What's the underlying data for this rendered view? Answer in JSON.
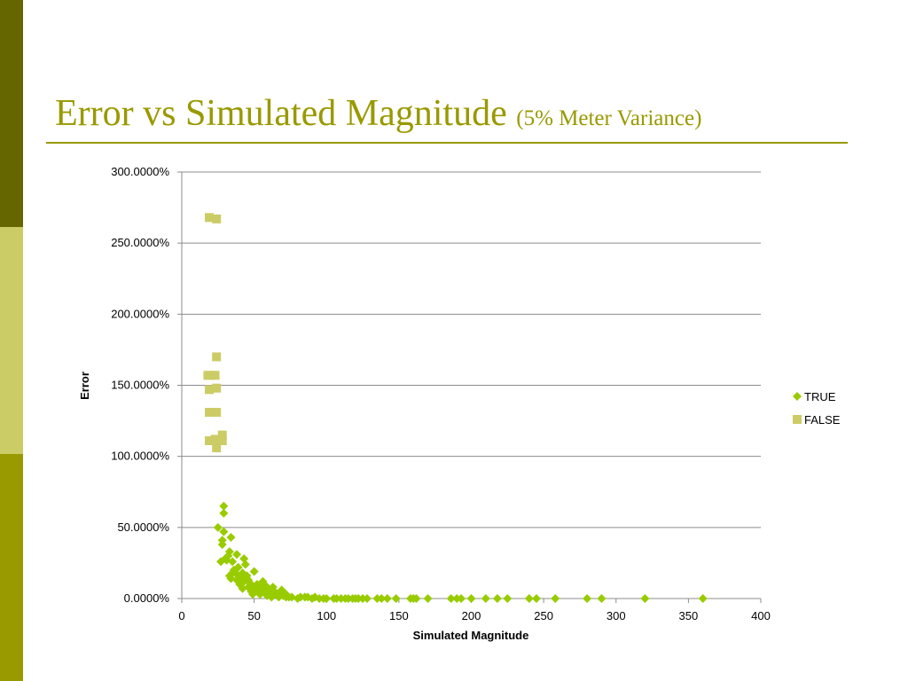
{
  "slide": {
    "title": "Error vs Simulated Magnitude",
    "subtitle": "(5% Meter Variance)",
    "colors": {
      "band_dark": "#666600",
      "band_light": "#cccc66",
      "band_mid": "#999900",
      "title": "#999900"
    }
  },
  "chart_data": {
    "type": "scatter",
    "title": "",
    "xlabel": "Simulated Magnitude",
    "ylabel": "Error",
    "xlim": [
      0,
      400
    ],
    "ylim": [
      0,
      300
    ],
    "x_ticks": [
      0,
      50,
      100,
      150,
      200,
      250,
      300,
      350,
      400
    ],
    "x_tick_labels": [
      "0",
      "50",
      "100",
      "150",
      "200",
      "250",
      "300",
      "350",
      "400"
    ],
    "y_ticks": [
      0,
      50,
      100,
      150,
      200,
      250,
      300
    ],
    "y_tick_labels": [
      "0.0000%",
      "50.0000%",
      "100.0000%",
      "150.0000%",
      "200.0000%",
      "250.0000%",
      "300.0000%"
    ],
    "grid": {
      "horizontal": true,
      "vertical": false
    },
    "legend_position": "right",
    "series": [
      {
        "name": "TRUE",
        "marker": "diamond",
        "color": "#99cc00",
        "points": [
          [
            25,
            50
          ],
          [
            27,
            26
          ],
          [
            28,
            38
          ],
          [
            28,
            41
          ],
          [
            29,
            65
          ],
          [
            29,
            60
          ],
          [
            29,
            47
          ],
          [
            30,
            28
          ],
          [
            31,
            27
          ],
          [
            32,
            30
          ],
          [
            33,
            33
          ],
          [
            33,
            16
          ],
          [
            34,
            14
          ],
          [
            34,
            43
          ],
          [
            35,
            18
          ],
          [
            35,
            26
          ],
          [
            36,
            20
          ],
          [
            37,
            18
          ],
          [
            38,
            13
          ],
          [
            38,
            31
          ],
          [
            39,
            22
          ],
          [
            40,
            10
          ],
          [
            40,
            16
          ],
          [
            41,
            14
          ],
          [
            42,
            7
          ],
          [
            42,
            18
          ],
          [
            43,
            28
          ],
          [
            43,
            12
          ],
          [
            44,
            24
          ],
          [
            45,
            16
          ],
          [
            46,
            8
          ],
          [
            46,
            13
          ],
          [
            47,
            11
          ],
          [
            48,
            5
          ],
          [
            48,
            9
          ],
          [
            49,
            3
          ],
          [
            50,
            19
          ],
          [
            50,
            6
          ],
          [
            51,
            8
          ],
          [
            52,
            10
          ],
          [
            53,
            5
          ],
          [
            54,
            3
          ],
          [
            55,
            7
          ],
          [
            56,
            12
          ],
          [
            57,
            4
          ],
          [
            58,
            9
          ],
          [
            59,
            2
          ],
          [
            60,
            5
          ],
          [
            61,
            3
          ],
          [
            62,
            1
          ],
          [
            63,
            8
          ],
          [
            65,
            4
          ],
          [
            66,
            2
          ],
          [
            67,
            1
          ],
          [
            68,
            3
          ],
          [
            69,
            6
          ],
          [
            70,
            2
          ],
          [
            71,
            4
          ],
          [
            72,
            1
          ],
          [
            74,
            1
          ],
          [
            76,
            1
          ],
          [
            80,
            0
          ],
          [
            82,
            1
          ],
          [
            85,
            1
          ],
          [
            87,
            1
          ],
          [
            90,
            0
          ],
          [
            92,
            1
          ],
          [
            95,
            0
          ],
          [
            98,
            0
          ],
          [
            100,
            0
          ],
          [
            105,
            0
          ],
          [
            107,
            0
          ],
          [
            110,
            0
          ],
          [
            113,
            0
          ],
          [
            115,
            0
          ],
          [
            118,
            0
          ],
          [
            120,
            0
          ],
          [
            122,
            0
          ],
          [
            125,
            0
          ],
          [
            128,
            0
          ],
          [
            135,
            0
          ],
          [
            138,
            0
          ],
          [
            142,
            0
          ],
          [
            148,
            0
          ],
          [
            158,
            0
          ],
          [
            160,
            0
          ],
          [
            162,
            0
          ],
          [
            170,
            0
          ],
          [
            186,
            0
          ],
          [
            190,
            0
          ],
          [
            193,
            0
          ],
          [
            200,
            0
          ],
          [
            210,
            0
          ],
          [
            218,
            0
          ],
          [
            225,
            0
          ],
          [
            240,
            0
          ],
          [
            245,
            0
          ],
          [
            258,
            0
          ],
          [
            280,
            0
          ],
          [
            290,
            0
          ],
          [
            320,
            0
          ],
          [
            360,
            0
          ]
        ]
      },
      {
        "name": "FALSE",
        "marker": "square",
        "color": "#cccc66",
        "points": [
          [
            19,
            268
          ],
          [
            24,
            267
          ],
          [
            24,
            170
          ],
          [
            18,
            157
          ],
          [
            20,
            157
          ],
          [
            23,
            157
          ],
          [
            19,
            147
          ],
          [
            24,
            148
          ],
          [
            19,
            131
          ],
          [
            24,
            131
          ],
          [
            19,
            111
          ],
          [
            23,
            112
          ],
          [
            24,
            106
          ],
          [
            28,
            115
          ],
          [
            28,
            111
          ]
        ]
      }
    ]
  }
}
